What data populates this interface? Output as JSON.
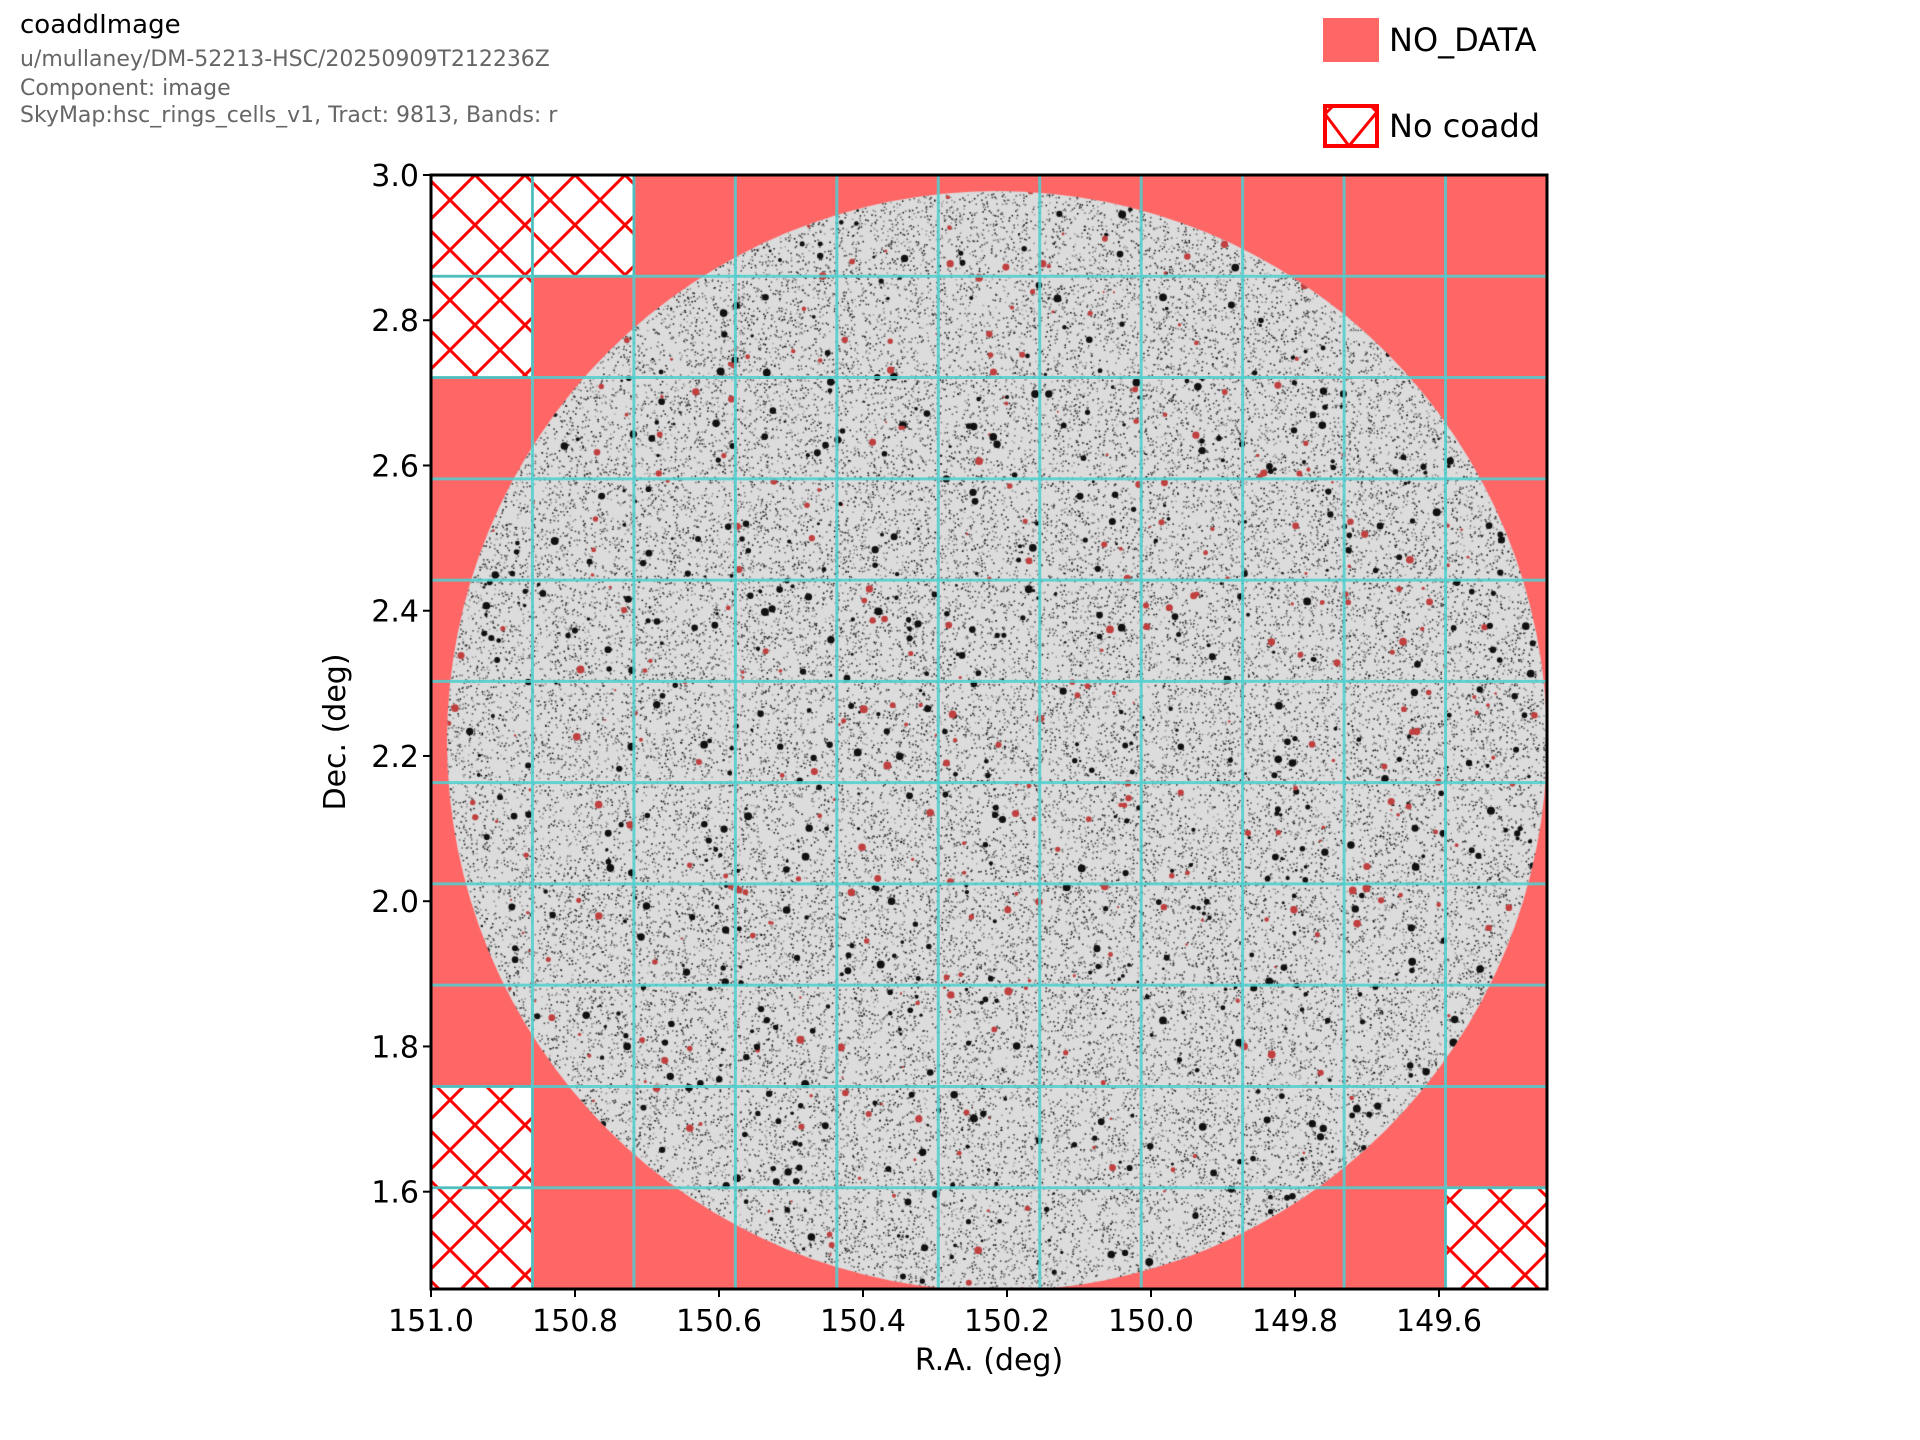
{
  "header": {
    "title": "coaddImage",
    "collection": "u/mullaney/DM-52213-HSC/20250909T212236Z",
    "component": "Component: image",
    "skymap_line": "SkyMap:hsc_rings_cells_v1, Tract: 9813, Bands: r"
  },
  "legend": {
    "items": [
      {
        "label": "NO_DATA",
        "style": "filled",
        "color": "#ff6666"
      },
      {
        "label": "No coadd",
        "style": "hatched",
        "color": "#ff0000"
      }
    ]
  },
  "colors": {
    "no_data": "#ff6666",
    "hatch": "#ff0000",
    "patch_grid": "#4fcfcf",
    "image_bg": "#dcdcdc"
  },
  "chart_data": {
    "type": "image",
    "title": "coaddImage",
    "xlabel": "R.A. (deg)",
    "ylabel": "Dec. (deg)",
    "xlim": [
      151.0,
      149.45
    ],
    "ylim": [
      1.466,
      3.0
    ],
    "xticks": [
      "151.0",
      "150.8",
      "150.6",
      "150.4",
      "150.2",
      "150.0",
      "149.8",
      "149.6"
    ],
    "xtick_values": [
      151.0,
      150.8,
      150.6,
      150.4,
      150.2,
      150.0,
      149.8,
      149.6
    ],
    "yticks": [
      "3.0",
      "2.8",
      "2.6",
      "2.4",
      "2.2",
      "2.0",
      "1.8",
      "1.6"
    ],
    "ytick_values": [
      3.0,
      2.8,
      2.6,
      2.4,
      2.2,
      2.0,
      1.8,
      1.6
    ],
    "patch_grid": {
      "columns": 11,
      "rows": 11
    },
    "no_coadd_patches": [
      [
        0,
        0
      ],
      [
        1,
        0
      ],
      [
        0,
        1
      ],
      [
        0,
        9
      ],
      [
        0,
        10
      ],
      [
        10,
        10
      ]
    ]
  }
}
